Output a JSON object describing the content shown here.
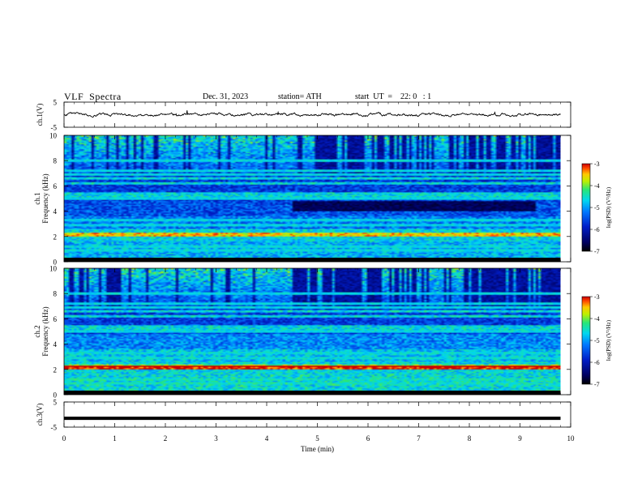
{
  "header": {
    "title": "VLF  Spectra",
    "date": "Dec. 31, 2023",
    "station": "station= ATH",
    "start": "start  UT  =    22: 0   : 1"
  },
  "chart_data": [
    {
      "type": "line",
      "name": "ch1-waveform",
      "ylabel": "ch.1(V)",
      "ylim": [
        -5,
        5
      ],
      "yticks": [
        "5",
        "-5"
      ],
      "xlim": [
        0,
        10
      ],
      "approx_level": 0
    },
    {
      "type": "heatmap",
      "name": "ch1-spectrogram",
      "ylabel_top": "ch.1",
      "ylabel": "Frequency  (kHz)",
      "ylim": [
        0,
        10
      ],
      "yticks": [
        "0",
        "2",
        "4",
        "6",
        "8",
        "10"
      ],
      "xlim": [
        0,
        10
      ],
      "colorbar": {
        "label": "log(PSD) (V²/Hz)",
        "range": [
          -7,
          -3
        ],
        "ticks": [
          "-3",
          "-4",
          "-5",
          "-6",
          "-7"
        ]
      }
    },
    {
      "type": "heatmap",
      "name": "ch2-spectrogram",
      "ylabel_top": "ch.2",
      "ylabel": "Frequency  (kHz)",
      "ylim": [
        0,
        10
      ],
      "yticks": [
        "0",
        "2",
        "4",
        "6",
        "8",
        "10"
      ],
      "xlim": [
        0,
        10
      ],
      "colorbar": {
        "label": "log(PSD) (V²/Hz)",
        "range": [
          -7,
          -3
        ],
        "ticks": [
          "-3",
          "-4",
          "-5",
          "-6",
          "-7"
        ]
      }
    },
    {
      "type": "line",
      "name": "ch3-waveform",
      "ylabel": "ch.3(V)",
      "ylim": [
        -5,
        5
      ],
      "yticks": [
        "5",
        "-5"
      ],
      "xlim": [
        0,
        10
      ],
      "approx_level": -1.5
    }
  ],
  "xaxis": {
    "label": "Time  (min)",
    "ticks": [
      "0",
      "1",
      "2",
      "3",
      "4",
      "5",
      "6",
      "7",
      "8",
      "9",
      "10"
    ]
  }
}
